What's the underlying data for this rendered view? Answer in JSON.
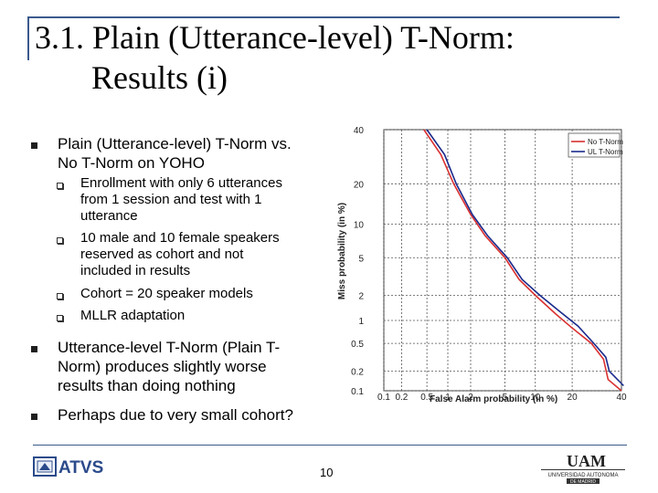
{
  "slide": {
    "title_line_1": "3.1. Plain (Utterance-level) T-Norm:",
    "title_line_2": "Results (i)",
    "page_number": "10"
  },
  "bullets": [
    {
      "text_line_1": "Plain (Utterance-level) T-Norm vs.",
      "text_line_2": "No T-Norm on YOHO"
    },
    {
      "text_line_1": "Utterance-level T-Norm (Plain T-",
      "text_line_2": "Norm) produces slightly worse",
      "text_line_3": "results than doing nothing"
    },
    {
      "text_line_1": "Perhaps due to very small cohort?"
    }
  ],
  "sub_bullets": [
    {
      "line_1": "Enrollment with only 6 utterances",
      "line_2": "from 1 session and test with 1",
      "line_3": "utterance"
    },
    {
      "line_1": "10 male and 10 female speakers",
      "line_2": "reserved as cohort and not",
      "line_3": "included in results"
    },
    {
      "line_1": "Cohort = 20 speaker models"
    },
    {
      "line_1": "MLLR adaptation"
    }
  ],
  "logos": {
    "left_text": "ATVS",
    "right_text_1": "UAM",
    "right_text_2": "UNIVERSIDAD AUTONOMA",
    "right_text_3": "DE MADRID"
  },
  "chart_data": {
    "type": "line",
    "xlabel": "False Alarm probability (in %)",
    "ylabel": "Miss probability (in %)",
    "x_ticks": [
      "0.1",
      "0.2",
      "0.5",
      "1",
      "2",
      "5",
      "10",
      "20",
      "40"
    ],
    "y_ticks": [
      "40",
      "20",
      "10",
      "5",
      "2",
      "1",
      "0.5",
      "0.2",
      "0.1"
    ],
    "legend_position": "top-right",
    "grid": true,
    "series": [
      {
        "name": "No T-Norm",
        "color": "#d93030",
        "points": [
          [
            0.45,
            40
          ],
          [
            0.8,
            30
          ],
          [
            1.2,
            20
          ],
          [
            2,
            12
          ],
          [
            3,
            8
          ],
          [
            5,
            5
          ],
          [
            7,
            3
          ],
          [
            10,
            2
          ],
          [
            15,
            1.2
          ],
          [
            20,
            0.8
          ],
          [
            27,
            0.5
          ],
          [
            32,
            0.3
          ],
          [
            34,
            0.15
          ],
          [
            40,
            0.1
          ]
        ]
      },
      {
        "name": "UL T-Norm",
        "color": "#1a2a8c",
        "points": [
          [
            0.5,
            40
          ],
          [
            0.9,
            30
          ],
          [
            1.3,
            20
          ],
          [
            2.1,
            12
          ],
          [
            3.2,
            8
          ],
          [
            5.3,
            5
          ],
          [
            7.5,
            3
          ],
          [
            11,
            2
          ],
          [
            16,
            1.3
          ],
          [
            22,
            0.85
          ],
          [
            28,
            0.5
          ],
          [
            33,
            0.32
          ],
          [
            34.5,
            0.2
          ],
          [
            41,
            0.12
          ]
        ]
      }
    ]
  }
}
